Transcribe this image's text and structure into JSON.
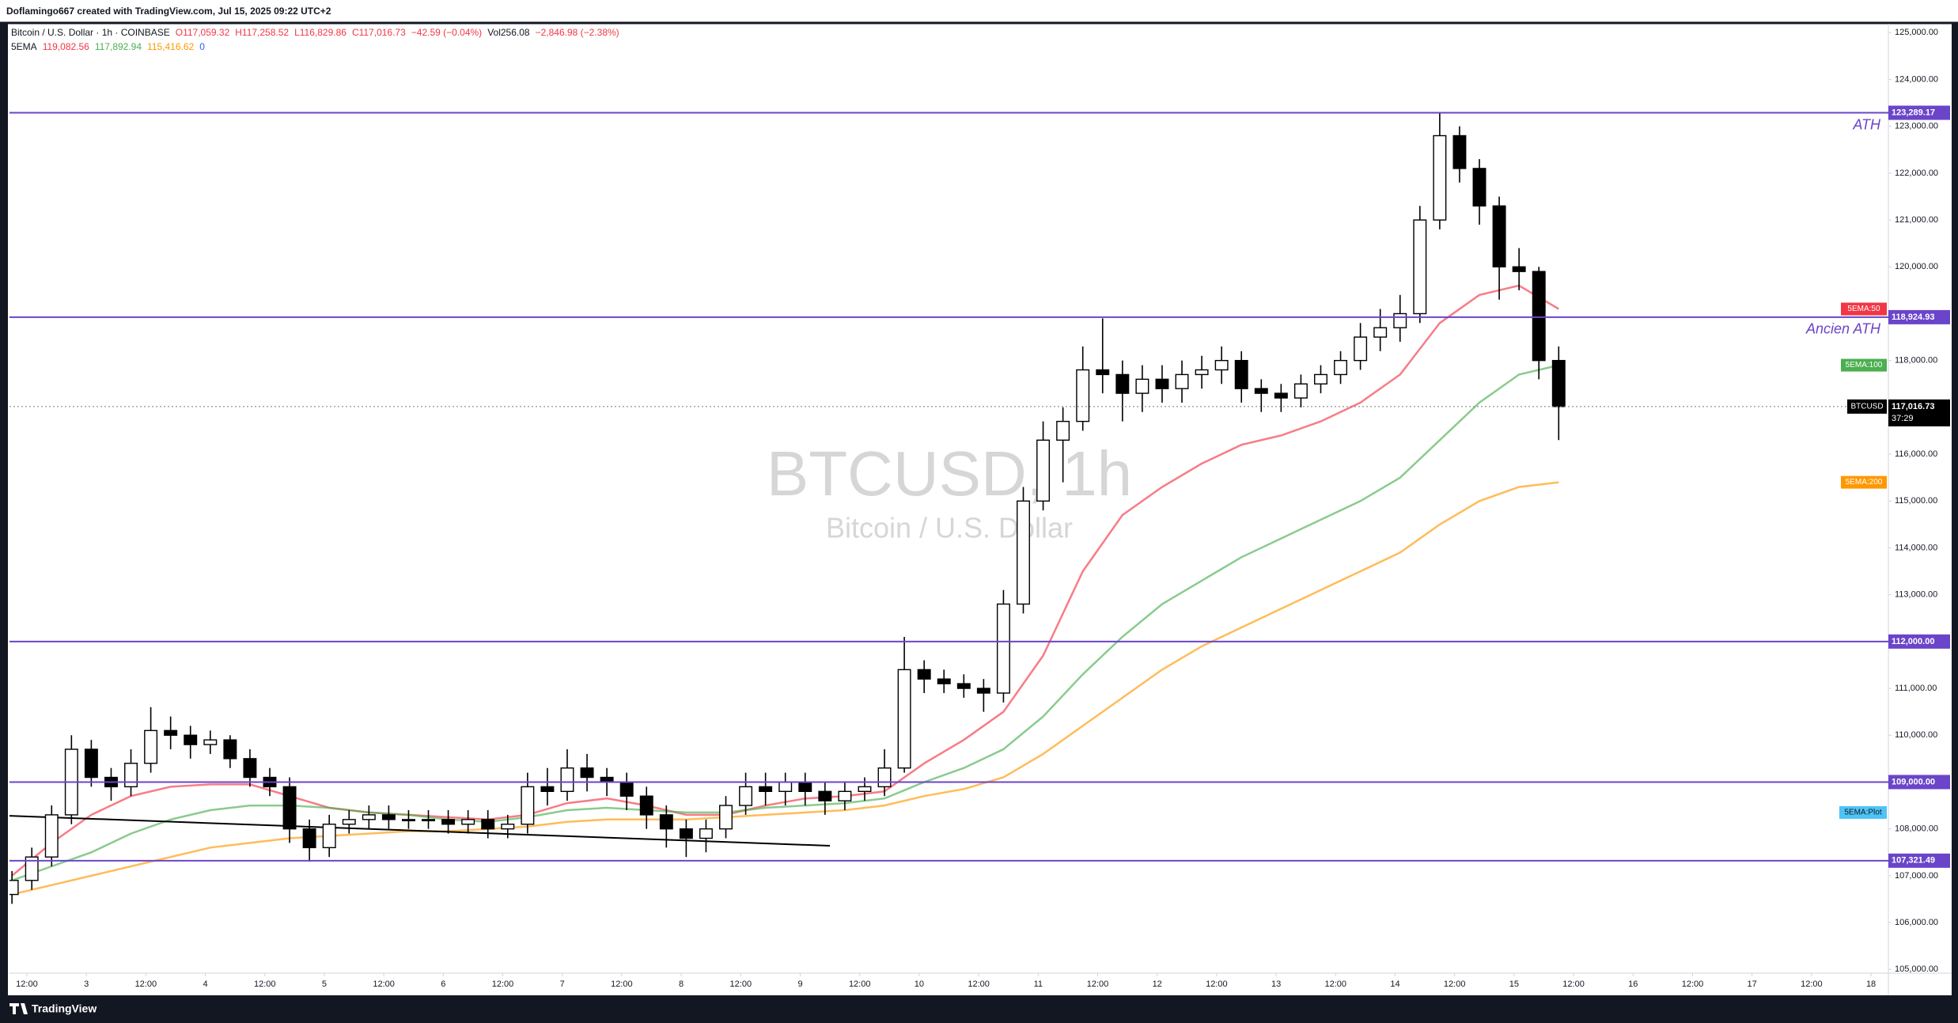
{
  "header": {
    "creator": "Doflamingo667 created with TradingView.com, Jul 15, 2025 09:22 UTC+2",
    "symbol": "Bitcoin / U.S. Dollar · 1h · COINBASE",
    "ohlc": [
      "O117,059.32",
      "H117,258.52",
      "L116,829.86",
      "C117,016.73",
      "−42.59 (−0.04%)"
    ],
    "volume": "Vol256.08",
    "volume_change": "−2,846.98 (−2.38%)",
    "indicator": "5EMA",
    "indicator_values": [
      "119,082.56",
      "117,892.94",
      "115,416.62",
      "0"
    ]
  },
  "watermark": {
    "symbol": "BTCUSD, 1h",
    "description": "Bitcoin / U.S. Dollar"
  },
  "footer": "TradingView",
  "chart_data": {
    "type": "candlestick",
    "up_color": "#ffffff",
    "down_color": "#000000",
    "xlim": [
      8.5,
      387.5
    ],
    "ylim": [
      104920,
      125190
    ],
    "grid": false,
    "x": [
      9,
      13,
      17,
      21,
      25,
      29,
      33,
      37,
      41,
      45,
      49,
      53,
      57,
      61,
      65,
      69,
      73,
      77,
      81,
      85,
      89,
      93,
      97,
      101,
      105,
      109,
      113,
      117,
      121,
      125,
      129,
      133,
      137,
      141,
      145,
      149,
      153,
      157,
      161,
      165,
      169,
      173,
      177,
      181,
      185,
      189,
      193,
      197,
      201,
      205,
      209,
      213,
      217,
      221,
      225,
      229,
      233,
      237,
      241,
      245,
      249,
      253,
      257,
      261,
      265,
      269,
      273,
      277,
      281,
      285,
      289,
      293,
      297,
      301,
      305,
      309,
      313,
      317,
      321
    ],
    "open": [
      106600,
      106900,
      107400,
      108300,
      109700,
      109100,
      108900,
      109400,
      110100,
      110000,
      109800,
      109900,
      109500,
      109100,
      108900,
      108000,
      107600,
      108100,
      108200,
      108300,
      108200,
      108200,
      108200,
      108100,
      108200,
      108000,
      108100,
      108900,
      108800,
      109300,
      109100,
      109000,
      108700,
      108300,
      108000,
      107800,
      108000,
      108500,
      108900,
      108800,
      109000,
      108800,
      108600,
      108800,
      108900,
      109300,
      111400,
      111200,
      111100,
      111000,
      110900,
      112800,
      115000,
      116300,
      116700,
      117800,
      117700,
      117300,
      117600,
      117400,
      117700,
      117800,
      118000,
      117400,
      117300,
      117200,
      117500,
      117700,
      118000,
      118500,
      118700,
      119000,
      121000,
      122800,
      122100,
      121300,
      120000,
      119900,
      118000
    ],
    "high": [
      107100,
      107600,
      108500,
      110000,
      109900,
      109300,
      109700,
      110600,
      110400,
      110200,
      110100,
      110000,
      109700,
      109300,
      109100,
      108200,
      108300,
      108400,
      108500,
      108500,
      108400,
      108400,
      108400,
      108400,
      108400,
      108300,
      109200,
      109300,
      109700,
      109600,
      109300,
      109200,
      108900,
      108500,
      108200,
      108200,
      108700,
      109200,
      109200,
      109200,
      109200,
      109000,
      109000,
      109100,
      109700,
      112100,
      111600,
      111400,
      111300,
      111200,
      113100,
      115300,
      116700,
      117000,
      118300,
      118900,
      118000,
      117900,
      117900,
      118000,
      118100,
      118300,
      118200,
      117600,
      117500,
      117700,
      117900,
      118200,
      118800,
      119100,
      119400,
      121300,
      123289.17,
      123000,
      122300,
      121500,
      120400,
      120000,
      118300
    ],
    "low": [
      106400,
      106700,
      107200,
      108100,
      108900,
      108600,
      108700,
      109200,
      109700,
      109500,
      109600,
      109300,
      108900,
      108700,
      107700,
      107300,
      107400,
      107900,
      108000,
      108000,
      108000,
      108000,
      107900,
      107900,
      107800,
      107800,
      107900,
      108500,
      108600,
      108800,
      108700,
      108400,
      108000,
      107600,
      107400,
      107500,
      107800,
      108300,
      108500,
      108500,
      108500,
      108300,
      108400,
      108600,
      108700,
      109200,
      110900,
      110900,
      110800,
      110500,
      110700,
      112600,
      114800,
      115400,
      116500,
      117300,
      116700,
      116900,
      117100,
      117100,
      117400,
      117500,
      117100,
      116900,
      116900,
      117000,
      117300,
      117500,
      117800,
      118200,
      118400,
      118800,
      120800,
      121800,
      120900,
      119300,
      119500,
      117600,
      116300
    ],
    "close": [
      106900,
      107400,
      108300,
      109700,
      109100,
      108900,
      109400,
      110100,
      110000,
      109800,
      109900,
      109500,
      109100,
      108900,
      108000,
      107600,
      108100,
      108200,
      108300,
      108200,
      108200,
      108200,
      108100,
      108200,
      108000,
      108100,
      108900,
      108800,
      109300,
      109100,
      109000,
      108700,
      108300,
      108000,
      107800,
      108000,
      108500,
      108900,
      108800,
      109000,
      108800,
      108600,
      108800,
      108900,
      109300,
      111400,
      111200,
      111100,
      111000,
      110900,
      112800,
      115000,
      116300,
      116700,
      117800,
      117700,
      117300,
      117600,
      117400,
      117700,
      117800,
      118000,
      117400,
      117300,
      117200,
      117500,
      117700,
      118000,
      118500,
      118700,
      119000,
      121000,
      122800,
      122100,
      121300,
      120000,
      119900,
      118000,
      117016.73
    ],
    "series": [
      {
        "name": "5EMA:50",
        "color": "#f23645",
        "x": [
          9,
          17,
          25,
          33,
          41,
          49,
          57,
          65,
          73,
          81,
          89,
          97,
          105,
          113,
          121,
          129,
          137,
          145,
          153,
          161,
          169,
          177,
          185,
          193,
          201,
          209,
          217,
          225,
          233,
          241,
          249,
          257,
          265,
          273,
          281,
          289,
          297,
          305,
          313,
          321
        ],
        "values": [
          107000,
          107700,
          108300,
          108700,
          108900,
          108950,
          108950,
          108700,
          108450,
          108350,
          108300,
          108250,
          108200,
          108300,
          108550,
          108650,
          108500,
          108300,
          108300,
          108500,
          108650,
          108700,
          108800,
          109400,
          109900,
          110500,
          111700,
          113500,
          114700,
          115300,
          115800,
          116200,
          116400,
          116700,
          117100,
          117700,
          118800,
          119400,
          119600,
          119100
        ]
      },
      {
        "name": "5EMA:100",
        "color": "#4caf50",
        "x": [
          9,
          17,
          25,
          33,
          41,
          49,
          57,
          65,
          73,
          81,
          89,
          97,
          105,
          113,
          121,
          129,
          137,
          145,
          153,
          161,
          169,
          177,
          185,
          193,
          201,
          209,
          217,
          225,
          233,
          241,
          249,
          257,
          265,
          273,
          281,
          289,
          297,
          305,
          313,
          321
        ],
        "values": [
          106900,
          107200,
          107500,
          107900,
          108200,
          108400,
          108500,
          108500,
          108450,
          108350,
          108300,
          108200,
          108150,
          108250,
          108400,
          108450,
          108400,
          108350,
          108350,
          108450,
          108500,
          108550,
          108650,
          109000,
          109300,
          109700,
          110400,
          111300,
          112100,
          112800,
          113300,
          113800,
          114200,
          114600,
          115000,
          115500,
          116300,
          117100,
          117700,
          117900
        ]
      },
      {
        "name": "5EMA:200",
        "color": "#ff9800",
        "x": [
          9,
          17,
          25,
          33,
          41,
          49,
          57,
          65,
          73,
          81,
          89,
          97,
          105,
          113,
          121,
          129,
          137,
          145,
          153,
          161,
          169,
          177,
          185,
          193,
          201,
          209,
          217,
          225,
          233,
          241,
          249,
          257,
          265,
          273,
          281,
          289,
          297,
          305,
          313,
          321
        ],
        "values": [
          106600,
          106800,
          107000,
          107200,
          107400,
          107600,
          107700,
          107800,
          107850,
          107900,
          107950,
          107950,
          108000,
          108050,
          108150,
          108200,
          108200,
          108200,
          108250,
          108300,
          108350,
          108400,
          108500,
          108700,
          108850,
          109100,
          109600,
          110200,
          110800,
          111400,
          111900,
          112300,
          112700,
          113100,
          113500,
          113900,
          114500,
          115000,
          115300,
          115400
        ]
      }
    ],
    "plot_label": {
      "name": "5EMA:Plot",
      "value": 108350,
      "color": "#4fc3f7"
    },
    "trendline": {
      "x": [
        8.5,
        174
      ],
      "values": [
        108280,
        107640
      ],
      "color": "#000000"
    },
    "levels": [
      {
        "value": 123289.17,
        "label": "123,289.17",
        "annotation": "ATH"
      },
      {
        "value": 118924.93,
        "label": "118,924.93",
        "annotation": "Ancien ATH"
      },
      {
        "value": 112000,
        "label": "112,000.00"
      },
      {
        "value": 109000,
        "label": "109,000.00"
      },
      {
        "value": 107321.49,
        "label": "107,321.49"
      }
    ],
    "level_color": "#6a45c9",
    "last_price": {
      "symbol": "BTCUSD",
      "value": 117016.73,
      "label": "117,016.73",
      "countdown": "37:29"
    },
    "yticks": [
      {
        "value": 105000,
        "label": "105,000.00"
      },
      {
        "value": 106000,
        "label": "106,000.00"
      },
      {
        "value": 107000,
        "label": "107,000.00"
      },
      {
        "value": 108000,
        "label": "108,000.00"
      },
      {
        "value": 109000,
        "label": "109,000.00"
      },
      {
        "value": 110000,
        "label": "110,000.00"
      },
      {
        "value": 111000,
        "label": "111,000.00"
      },
      {
        "value": 112000,
        "label": "112,000.00"
      },
      {
        "value": 113000,
        "label": "113,000.00"
      },
      {
        "value": 114000,
        "label": "114,000.00"
      },
      {
        "value": 115000,
        "label": "115,000.00"
      },
      {
        "value": 116000,
        "label": "116,000.00"
      },
      {
        "value": 117000,
        "label": "117,000.00"
      },
      {
        "value": 118000,
        "label": "118,000.00"
      },
      {
        "value": 119000,
        "label": "119,000.00"
      },
      {
        "value": 120000,
        "label": "120,000.00"
      },
      {
        "value": 121000,
        "label": "121,000.00"
      },
      {
        "value": 122000,
        "label": "122,000.00"
      },
      {
        "value": 123000,
        "label": "123,000.00"
      },
      {
        "value": 124000,
        "label": "124,000.00"
      },
      {
        "value": 125000,
        "label": "125,000.00"
      }
    ],
    "xticks": [
      {
        "value": 12,
        "label": "12:00"
      },
      {
        "value": 24,
        "label": "3"
      },
      {
        "value": 36,
        "label": "12:00"
      },
      {
        "value": 48,
        "label": "4"
      },
      {
        "value": 60,
        "label": "12:00"
      },
      {
        "value": 72,
        "label": "5"
      },
      {
        "value": 84,
        "label": "12:00"
      },
      {
        "value": 96,
        "label": "6"
      },
      {
        "value": 108,
        "label": "12:00"
      },
      {
        "value": 120,
        "label": "7"
      },
      {
        "value": 132,
        "label": "12:00"
      },
      {
        "value": 144,
        "label": "8"
      },
      {
        "value": 156,
        "label": "12:00"
      },
      {
        "value": 168,
        "label": "9"
      },
      {
        "value": 180,
        "label": "12:00"
      },
      {
        "value": 192,
        "label": "10"
      },
      {
        "value": 204,
        "label": "12:00"
      },
      {
        "value": 216,
        "label": "11"
      },
      {
        "value": 228,
        "label": "12:00"
      },
      {
        "value": 240,
        "label": "12"
      },
      {
        "value": 252,
        "label": "12:00"
      },
      {
        "value": 264,
        "label": "13"
      },
      {
        "value": 276,
        "label": "12:00"
      },
      {
        "value": 288,
        "label": "14"
      },
      {
        "value": 300,
        "label": "12:00"
      },
      {
        "value": 312,
        "label": "15"
      },
      {
        "value": 324,
        "label": "12:00"
      },
      {
        "value": 336,
        "label": "16"
      },
      {
        "value": 348,
        "label": "12:00"
      },
      {
        "value": 360,
        "label": "17"
      },
      {
        "value": 372,
        "label": "12:00"
      },
      {
        "value": 384,
        "label": "18"
      }
    ]
  }
}
